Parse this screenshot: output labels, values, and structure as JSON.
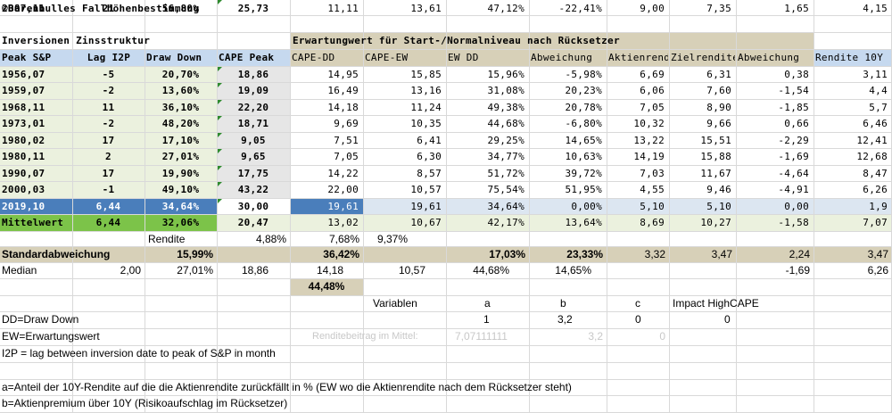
{
  "title": "©Bärenbulles Fallhöhenbestimmung",
  "section_inversion": "Inversionen Zinsstruktur",
  "section_erwartung": "Erwartungwert für Start-/Normalniveau nach Rücksetzer",
  "headers": [
    "Peak S&P",
    "Lag I2P",
    "Draw Down",
    "CAPE Peak",
    "CAPE-DD",
    "CAPE-EW",
    "EW DD",
    "Abweichung",
    "Aktienrendite",
    "Zielrendite",
    "Abweichung",
    "Rendite 10Y"
  ],
  "rows": [
    [
      "1956,07",
      "-5",
      "20,70%",
      "18,86",
      "14,95",
      "15,85",
      "15,96%",
      "-5,98%",
      "6,69",
      "6,31",
      "0,38",
      "3,11"
    ],
    [
      "1959,07",
      "-2",
      "13,60%",
      "19,09",
      "16,49",
      "13,16",
      "31,08%",
      "20,23%",
      "6,06",
      "7,60",
      "-1,54",
      "4,4"
    ],
    [
      "1968,11",
      "11",
      "36,10%",
      "22,20",
      "14,18",
      "11,24",
      "49,38%",
      "20,78%",
      "7,05",
      "8,90",
      "-1,85",
      "5,7"
    ],
    [
      "1973,01",
      "-2",
      "48,20%",
      "18,71",
      "9,69",
      "10,35",
      "44,68%",
      "-6,80%",
      "10,32",
      "9,66",
      "0,66",
      "6,46"
    ],
    [
      "1980,02",
      "17",
      "17,10%",
      "9,05",
      "7,51",
      "6,41",
      "29,25%",
      "14,65%",
      "13,22",
      "15,51",
      "-2,29",
      "12,41"
    ],
    [
      "1980,11",
      "2",
      "27,01%",
      "9,65",
      "7,05",
      "6,30",
      "34,77%",
      "10,63%",
      "14,19",
      "15,88",
      "-1,69",
      "12,68"
    ],
    [
      "1990,07",
      "17",
      "19,90%",
      "17,75",
      "14,22",
      "8,57",
      "51,72%",
      "39,72%",
      "7,03",
      "11,67",
      "-4,64",
      "8,47"
    ],
    [
      "2000,03",
      "-1",
      "49,10%",
      "43,22",
      "22,00",
      "10,57",
      "75,54%",
      "51,95%",
      "4,55",
      "9,46",
      "-4,91",
      "6,26"
    ],
    [
      "2007,11",
      "21",
      "56,80%",
      "25,73",
      "11,11",
      "13,61",
      "47,12%",
      "-22,41%",
      "9,00",
      "7,35",
      "1,65",
      "4,15"
    ]
  ],
  "current_row": [
    "2019,10",
    "6,44",
    "34,64%",
    "30,00",
    "19,61",
    "19,61",
    "34,64%",
    "0,00%",
    "5,10",
    "5,10",
    "0,00",
    "1,9"
  ],
  "mittelwert_row": [
    "Mittelwert",
    "6,44",
    "32,06%",
    "20,47",
    "13,02",
    "10,67",
    "42,17%",
    "13,64%",
    "8,69",
    "10,27",
    "-1,58",
    "7,07"
  ],
  "rendite_row": {
    "label": "Rendite",
    "values": [
      "4,88%",
      "7,68%",
      "9,37%"
    ]
  },
  "std_row": {
    "label": "Standardabweichung",
    "draw_down": "15,99%",
    "cape_dd": "36,42%",
    "ew_dd": "17,03%",
    "abw": "23,33%",
    "aktien": "3,32",
    "ziel": "3,47",
    "abw2": "2,24",
    "rendite": "3,47"
  },
  "median_row": {
    "label": "Median",
    "lag": "2,00",
    "draw_down": "27,01%",
    "cape_peak": "18,86",
    "cape_dd": "14,18",
    "cape_ew": "10,57",
    "ew_dd": "44,68%",
    "abw": "14,65%",
    "abw2": "-1,69",
    "rendite": "6,26"
  },
  "extra_value": "44,48%",
  "variables": {
    "label": "Variablen",
    "a": "a",
    "b": "b",
    "c": "c",
    "impact": "Impact HighCAPE",
    "a_val": "1",
    "b_val": "3,2",
    "c_val": "0",
    "impact_val": "0"
  },
  "renditebeitrag": {
    "label": "Renditebeitrag im Mittel:",
    "a": "7,07111111",
    "b": "3,2",
    "c": "0"
  },
  "notes": {
    "dd": "DD=Draw Down",
    "ew": "EW=Erwartungswert",
    "i2p": "I2P = lag between inversion date to peak of S&P in month",
    "a": "a=Anteil der 10Y-Rendite auf die die Aktienrendite zurückfällt in % (EW wo die Aktienrendite nach dem Rücksetzer steht)",
    "b": "b=Aktienpremium über 10Y (Risikoaufschlag im Rücksetzer)"
  },
  "colors": {
    "tan": "#d7d0b8",
    "header_blue": "#c6d9ef",
    "light_green": "#ebf1de",
    "current_blue": "#4a7ebb",
    "current_light": "#dce6f1",
    "green": "#7cc349",
    "grey_band": "#e6e6e6"
  }
}
